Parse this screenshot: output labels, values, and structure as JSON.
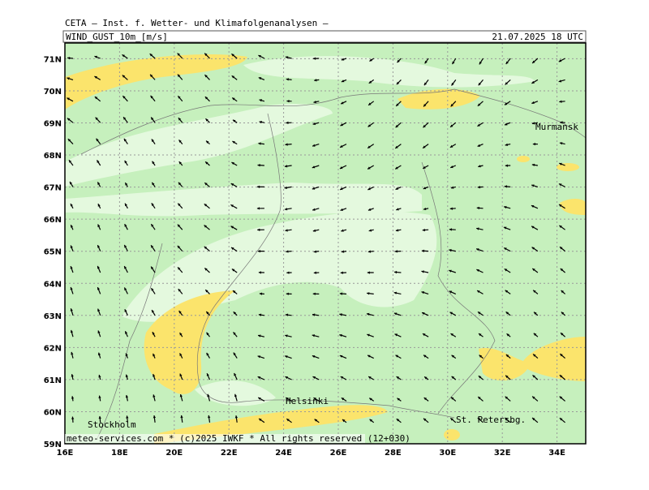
{
  "header": {
    "source": "CETA — Inst. f. Wetter- und Klimafolgenanalysen —",
    "parameter": "WIND_GUST_10m_[m/s]",
    "valid_time": "21.07.2025 18 UTC"
  },
  "map": {
    "lat_labels": [
      "59N",
      "60N",
      "61N",
      "62N",
      "63N",
      "64N",
      "65N",
      "66N",
      "67N",
      "68N",
      "69N",
      "70N",
      "71N"
    ],
    "lon_labels": [
      "16E",
      "18E",
      "20E",
      "22E",
      "24E",
      "26E",
      "28E",
      "30E",
      "32E",
      "34E"
    ],
    "cities": {
      "murmansk": "Murmansk",
      "helsinki": "Helsinki",
      "stockholm": "Stockholm",
      "st_petersburg": "St. Petersbg."
    }
  },
  "footer": "meteo-services.com * (c)2025 IWKF * All rights reserved (12+030)"
}
